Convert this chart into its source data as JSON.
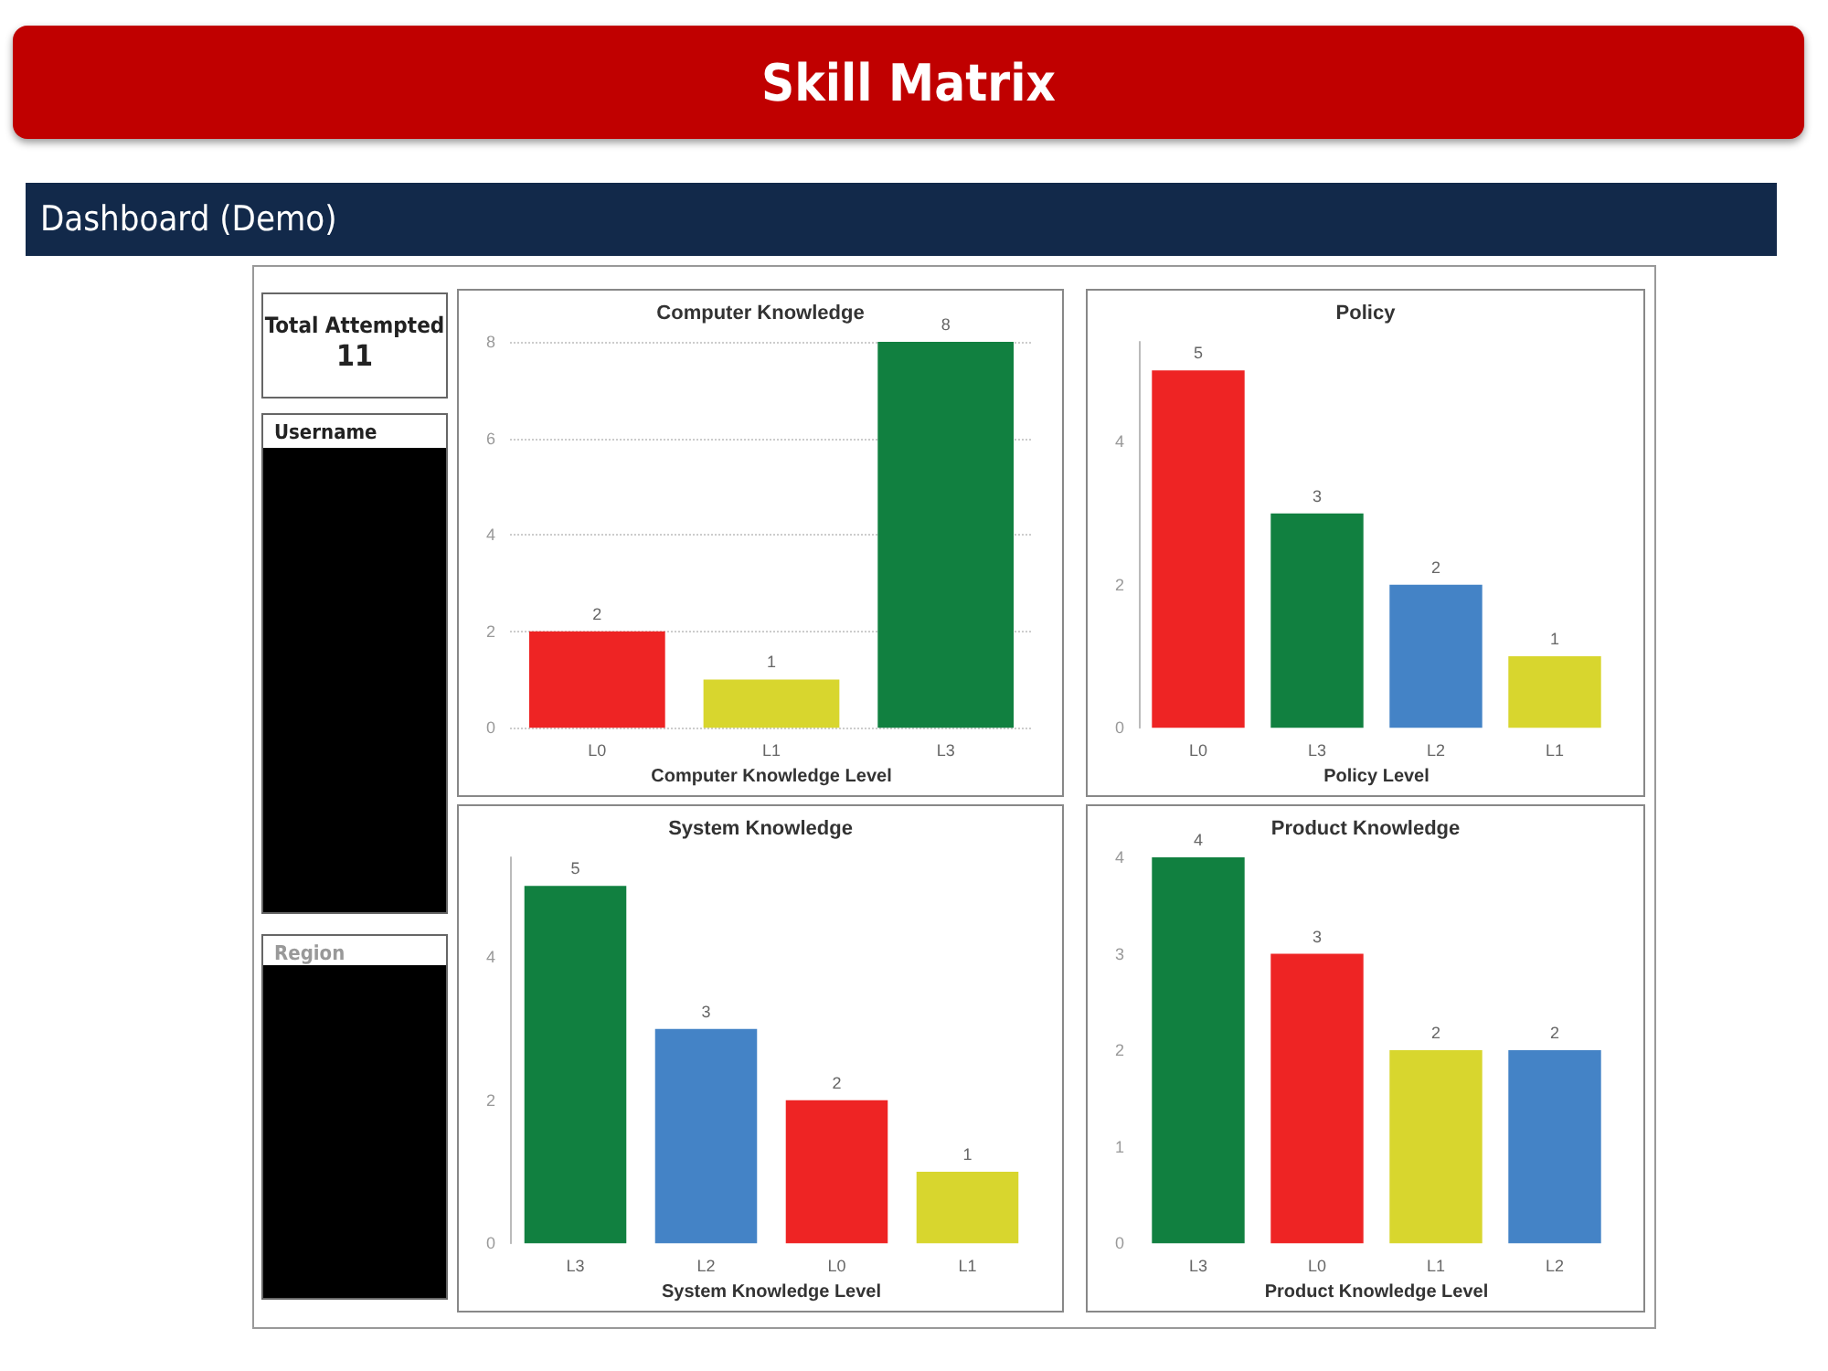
{
  "chart_data": [
    {
      "type": "other",
      "title": "Skill Matrix",
      "subtitle": "Dashboard (Demo)",
      "annotations": [
        "Total Attempted",
        "11",
        "Username",
        "Region"
      ]
    },
    {
      "type": "bar",
      "title": "Computer Knowledge",
      "xlabel": "Computer Knowledge Level",
      "categories": [
        "L0",
        "L1",
        "L3"
      ],
      "values": [
        2,
        1,
        8
      ],
      "colors": [
        "#ee2424",
        "#d8d62e",
        "#118040"
      ],
      "ylim": [
        0,
        8
      ],
      "yticks": [
        0,
        2,
        4,
        6,
        8
      ],
      "grid": "y",
      "data_labels": true
    },
    {
      "type": "bar",
      "title": "Policy",
      "xlabel": "Policy Level",
      "categories": [
        "L0",
        "L3",
        "L2",
        "L1"
      ],
      "values": [
        5,
        3,
        2,
        1
      ],
      "colors": [
        "#ee2424",
        "#118040",
        "#4483c6",
        "#d8d62e"
      ],
      "ylim": [
        0,
        5.4
      ],
      "yticks": [
        0,
        2,
        4
      ],
      "data_labels": true
    },
    {
      "type": "bar",
      "title": "System Knowledge",
      "xlabel": "System Knowledge Level",
      "categories": [
        "L3",
        "L2",
        "L0",
        "L1"
      ],
      "values": [
        5,
        3,
        2,
        1
      ],
      "colors": [
        "#118040",
        "#4483c6",
        "#ee2424",
        "#d8d62e"
      ],
      "ylim": [
        0,
        5.4
      ],
      "yticks": [
        0,
        2,
        4
      ],
      "data_labels": true
    },
    {
      "type": "bar",
      "title": "Product Knowledge",
      "xlabel": "Product Knowledge Level",
      "categories": [
        "L3",
        "L0",
        "L1",
        "L2"
      ],
      "values": [
        4,
        3,
        2,
        2
      ],
      "colors": [
        "#118040",
        "#ee2424",
        "#d8d62e",
        "#4483c6"
      ],
      "ylim": [
        0,
        4
      ],
      "yticks": [
        0,
        1,
        2,
        3,
        4
      ],
      "data_labels": true
    }
  ]
}
